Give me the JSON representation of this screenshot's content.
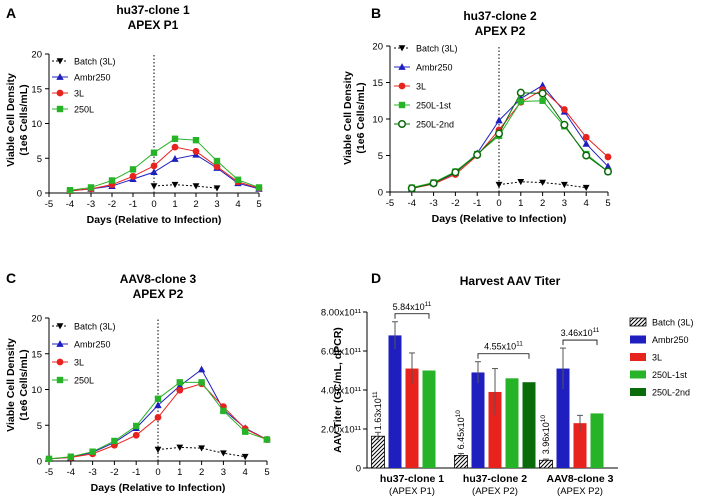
{
  "figure": {
    "panels": [
      {
        "letter": "A",
        "title_line1": "hu37-clone 1",
        "title_line2": "APEX P1"
      },
      {
        "letter": "B",
        "title_line1": "hu37-clone 2",
        "title_line2": "APEX P2"
      },
      {
        "letter": "C",
        "title_line1": "AAV8-clone 3",
        "title_line2": "APEX P2"
      },
      {
        "letter": "D",
        "title_line1": "Harvest AAV Titer",
        "title_line2": ""
      }
    ]
  },
  "colors": {
    "batch": "#000000",
    "ambr250": "#1f1fbf",
    "threeL": "#e8231e",
    "l250": "#27b327",
    "l250_2nd": "#0a6b0a"
  },
  "chart_data": [
    {
      "type": "line",
      "panel": "A",
      "title": "hu37-clone 1 APEX P1",
      "xlabel": "Days (Relative to Infection)",
      "ylabel": "Viable Cell Density (1e6 Cells/mL)",
      "xlim": [
        -5,
        5
      ],
      "ylim": [
        0,
        20
      ],
      "xticks": [
        -5,
        -4,
        -3,
        -2,
        -1,
        0,
        1,
        2,
        3,
        4,
        5
      ],
      "yticks": [
        0,
        5,
        10,
        15,
        20
      ],
      "infection_line_x": 0,
      "series": [
        {
          "name": "Batch (3L)",
          "color": "#000000",
          "marker": "triangle-down",
          "dashed": true,
          "x": [
            0,
            1,
            2,
            3
          ],
          "y": [
            1.0,
            1.2,
            1.0,
            0.7
          ]
        },
        {
          "name": "Ambr250",
          "color": "#1f1fbf",
          "marker": "triangle-up",
          "dashed": false,
          "x": [
            -4,
            -3,
            -2,
            -1,
            0,
            1,
            2,
            3,
            4,
            5
          ],
          "y": [
            0.3,
            0.6,
            1.0,
            2.0,
            3.0,
            4.9,
            5.5,
            3.6,
            1.4,
            0.6
          ]
        },
        {
          "name": "3L",
          "color": "#e8231e",
          "marker": "circle",
          "dashed": false,
          "x": [
            -4,
            -3,
            -2,
            -1,
            0,
            1,
            2,
            3,
            4,
            5
          ],
          "y": [
            0.3,
            0.6,
            1.2,
            2.4,
            3.9,
            6.6,
            6.0,
            3.8,
            1.6,
            0.7
          ]
        },
        {
          "name": "250L",
          "color": "#27b327",
          "marker": "square",
          "dashed": false,
          "x": [
            -4,
            -3,
            -2,
            -1,
            0,
            1,
            2,
            3,
            4,
            5
          ],
          "y": [
            0.4,
            0.8,
            1.8,
            3.4,
            5.8,
            7.8,
            7.6,
            4.6,
            1.9,
            0.8
          ]
        }
      ]
    },
    {
      "type": "line",
      "panel": "B",
      "title": "hu37-clone 2 APEX P2",
      "xlabel": "Days (Relative to Infection)",
      "ylabel": "Viable Cell Density (1e6 Cells/mL)",
      "xlim": [
        -5,
        5
      ],
      "ylim": [
        0,
        20
      ],
      "xticks": [
        -5,
        -4,
        -3,
        -2,
        -1,
        0,
        1,
        2,
        3,
        4,
        5
      ],
      "yticks": [
        0,
        5,
        10,
        15,
        20
      ],
      "infection_line_x": 0,
      "series": [
        {
          "name": "Batch (3L)",
          "color": "#000000",
          "marker": "triangle-down",
          "dashed": true,
          "x": [
            0,
            1,
            2,
            3,
            4
          ],
          "y": [
            1.0,
            1.4,
            1.3,
            1.0,
            0.6
          ]
        },
        {
          "name": "Ambr250",
          "color": "#1f1fbf",
          "marker": "triangle-up",
          "dashed": false,
          "x": [
            -4,
            -3,
            -2,
            -1,
            0,
            1,
            2,
            3,
            4,
            5
          ],
          "y": [
            0.5,
            1.2,
            2.6,
            5.3,
            9.8,
            12.8,
            14.6,
            11.0,
            6.6,
            3.5
          ]
        },
        {
          "name": "3L",
          "color": "#e8231e",
          "marker": "circle",
          "dashed": false,
          "x": [
            -4,
            -3,
            -2,
            -1,
            0,
            1,
            2,
            3,
            4,
            5
          ],
          "y": [
            0.5,
            1.1,
            2.4,
            5.0,
            8.5,
            12.3,
            14.0,
            11.3,
            7.5,
            4.8
          ]
        },
        {
          "name": "250L-1st",
          "color": "#27b327",
          "marker": "square",
          "dashed": false,
          "x": [
            -4,
            -3,
            -2,
            -1,
            0,
            1,
            2,
            3,
            4,
            5
          ],
          "y": [
            0.6,
            1.3,
            2.8,
            5.2,
            7.7,
            12.4,
            12.5,
            9.0,
            5.2,
            2.8
          ]
        },
        {
          "name": "250L-2nd",
          "color": "#0a6b0a",
          "marker": "circle-open",
          "dashed": false,
          "x": [
            -4,
            -3,
            -2,
            -1,
            0,
            1,
            2,
            3,
            4,
            5
          ],
          "y": [
            0.5,
            1.2,
            2.7,
            5.1,
            8.0,
            13.6,
            13.5,
            9.2,
            5.0,
            2.8
          ]
        }
      ]
    },
    {
      "type": "line",
      "panel": "C",
      "title": "AAV8-clone 3 APEX P2",
      "xlabel": "Days (Relative to Infection)",
      "ylabel": "Viable Cell Density (1e6 Cells/mL)",
      "xlim": [
        -5,
        5
      ],
      "ylim": [
        0,
        20
      ],
      "xticks": [
        -5,
        -4,
        -3,
        -2,
        -1,
        0,
        1,
        2,
        3,
        4,
        5
      ],
      "yticks": [
        0,
        5,
        10,
        15,
        20
      ],
      "infection_line_x": 0,
      "series": [
        {
          "name": "Batch (3L)",
          "color": "#000000",
          "marker": "triangle-down",
          "dashed": true,
          "x": [
            0,
            1,
            2,
            3,
            4
          ],
          "y": [
            1.6,
            1.9,
            1.8,
            1.1,
            0.6
          ]
        },
        {
          "name": "Ambr250",
          "color": "#1f1fbf",
          "marker": "triangle-up",
          "dashed": false,
          "x": [
            -5,
            -4,
            -3,
            -2,
            -1,
            0,
            1,
            2,
            3,
            4,
            5
          ],
          "y": [
            0.3,
            0.5,
            1.2,
            2.6,
            4.6,
            7.8,
            10.5,
            12.8,
            7.2,
            4.6,
            3.0
          ]
        },
        {
          "name": "3L",
          "color": "#e8231e",
          "marker": "circle",
          "dashed": false,
          "x": [
            -5,
            -4,
            -3,
            -2,
            -1,
            0,
            1,
            2,
            3,
            4,
            5
          ],
          "y": [
            0.3,
            0.5,
            1.0,
            2.2,
            3.6,
            6.1,
            9.9,
            10.8,
            7.6,
            4.5,
            3.0
          ]
        },
        {
          "name": "250L",
          "color": "#27b327",
          "marker": "square",
          "dashed": false,
          "x": [
            -5,
            -4,
            -3,
            -2,
            -1,
            0,
            1,
            2,
            3,
            4,
            5
          ],
          "y": [
            0.3,
            0.6,
            1.3,
            2.8,
            4.9,
            8.7,
            11.0,
            11.0,
            7.0,
            4.1,
            3.0
          ]
        }
      ]
    },
    {
      "type": "bar",
      "panel": "D",
      "title": "Harvest AAV Titer",
      "ylabel": "AAV Titer (GC/mL, dPCR)",
      "ylim": [
        0,
        800000000000.0
      ],
      "ytick_labels": [
        "0",
        "2.00x10¹¹",
        "4.00x10¹¹",
        "6.00x10¹¹",
        "8.00x10¹¹"
      ],
      "yticks": [
        0,
        200000000000.0,
        400000000000.0,
        600000000000.0,
        800000000000.0
      ],
      "categories": [
        "hu37-clone 1",
        "hu37-clone 2",
        "AAV8-clone 3"
      ],
      "category_sublabels": [
        "(APEX P1)",
        "(APEX P2)",
        "(APEX P2)"
      ],
      "series": [
        {
          "name": "Batch (3L)",
          "color": "#000000",
          "pattern": "hatch",
          "values": [
            163000000000.0,
            64500000000.0,
            39600000000.0
          ],
          "errors": [
            20000000000.0,
            10000000000.0,
            6000000000.0
          ]
        },
        {
          "name": "Ambr250",
          "color": "#1f1fbf",
          "values": [
            680000000000.0,
            490000000000.0,
            510000000000.0
          ],
          "errors": [
            70000000000.0,
            55000000000.0,
            105000000000.0
          ]
        },
        {
          "name": "3L",
          "color": "#e8231e",
          "values": [
            510000000000.0,
            390000000000.0,
            230000000000.0
          ],
          "errors": [
            80000000000.0,
            120000000000.0,
            40000000000.0
          ]
        },
        {
          "name": "250L-1st",
          "color": "#27b327",
          "values": [
            500000000000.0,
            460000000000.0,
            280000000000.0
          ],
          "errors": [
            0,
            0,
            0
          ]
        },
        {
          "name": "250L-2nd",
          "color": "#0a6b0a",
          "values": [
            null,
            440000000000.0,
            null
          ],
          "errors": [
            0,
            0,
            0
          ]
        }
      ],
      "value_annotations": [
        {
          "category_index": 0,
          "series_index": 0,
          "base": "1.63x10",
          "exp": "11"
        },
        {
          "category_index": 1,
          "series_index": 0,
          "base": "6.45x10",
          "exp": "10"
        },
        {
          "category_index": 2,
          "series_index": 0,
          "base": "3.96x10",
          "exp": "10"
        }
      ],
      "brackets": [
        {
          "category_index": 0,
          "from_series": 1,
          "to_series": 3,
          "base": "5.84x10",
          "exp": "11"
        },
        {
          "category_index": 1,
          "from_series": 1,
          "to_series": 4,
          "base": "4.55x10",
          "exp": "11"
        },
        {
          "category_index": 2,
          "from_series": 1,
          "to_series": 3,
          "base": "3.46x10",
          "exp": "11"
        }
      ]
    }
  ]
}
